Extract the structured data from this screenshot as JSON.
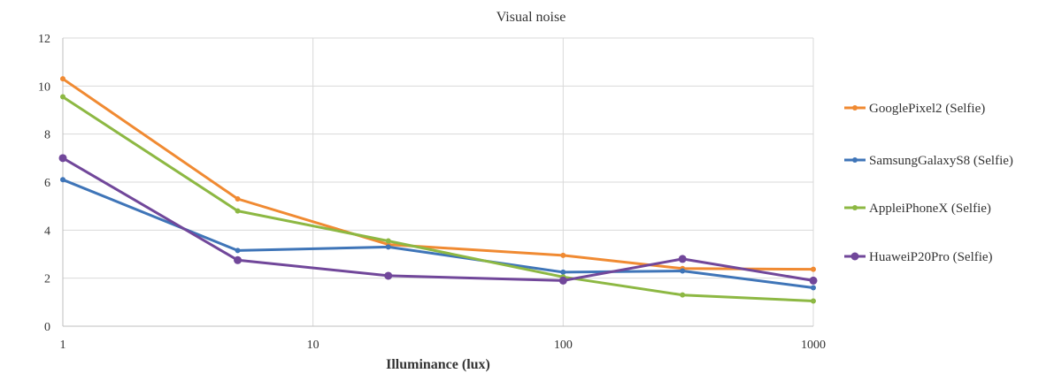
{
  "chart_data": {
    "type": "line",
    "title": "Visual noise",
    "xlabel": "Illuminance (lux)",
    "ylabel": "",
    "x_scale": "log",
    "xlim": [
      1,
      1000
    ],
    "ylim": [
      0,
      12
    ],
    "x_ticks": [
      "1",
      "10",
      "100",
      "1000"
    ],
    "y_ticks": [
      "0",
      "2",
      "4",
      "6",
      "8",
      "10",
      "12"
    ],
    "grid": true,
    "legend_position": "right",
    "x": [
      1,
      5,
      20,
      100,
      300,
      1000
    ],
    "series": [
      {
        "name": "GooglePixel2 (Selfie)",
        "color": "#f08a32",
        "values": [
          10.3,
          5.3,
          3.4,
          2.95,
          2.4,
          2.37
        ]
      },
      {
        "name": "SamsungGalaxyS8 (Selfie)",
        "color": "#3f75b8",
        "values": [
          6.1,
          3.15,
          3.3,
          2.25,
          2.3,
          1.6
        ]
      },
      {
        "name": "AppleiPhoneX (Selfie)",
        "color": "#8db843",
        "values": [
          9.55,
          4.8,
          3.55,
          2.05,
          1.3,
          1.05
        ]
      },
      {
        "name": "HuaweiP20Pro (Selfie)",
        "color": "#71479a",
        "values": [
          7.0,
          2.75,
          2.1,
          1.9,
          2.8,
          1.9
        ]
      }
    ]
  }
}
